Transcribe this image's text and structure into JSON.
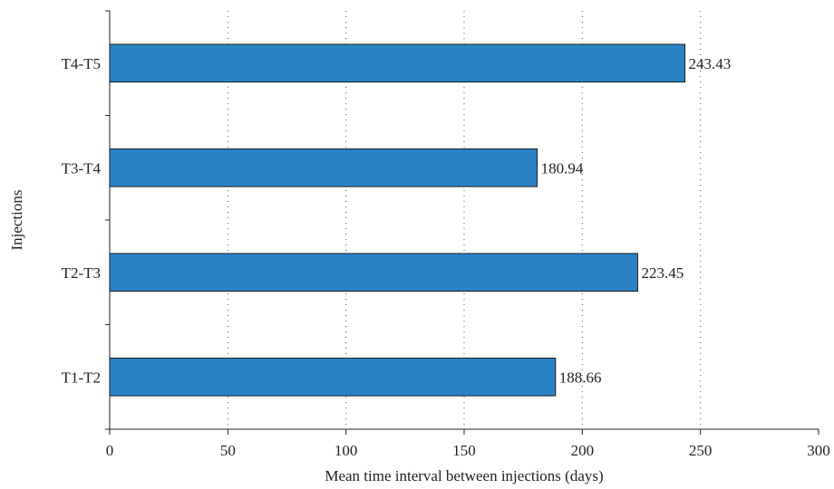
{
  "chart_data": {
    "type": "bar",
    "orientation": "horizontal",
    "categories": [
      "T1-T2",
      "T2-T3",
      "T3-T4",
      "T4-T5"
    ],
    "values": [
      188.66,
      223.45,
      180.94,
      243.43
    ],
    "data_labels": [
      "188.66",
      "223.45",
      "180.94",
      "243.43"
    ],
    "title": "",
    "xlabel": "Mean time interval between injections (days)",
    "ylabel": "Injections",
    "xlim": [
      0,
      300
    ],
    "xticks": [
      0,
      50,
      100,
      150,
      200,
      250,
      300
    ],
    "xtick_labels": [
      "0",
      "50",
      "100",
      "150",
      "200",
      "250",
      "300"
    ],
    "grid": "vertical dotted",
    "legend": "none",
    "bar_color": "#2b83c6",
    "bar_edge_color": "#1a1a1a"
  }
}
